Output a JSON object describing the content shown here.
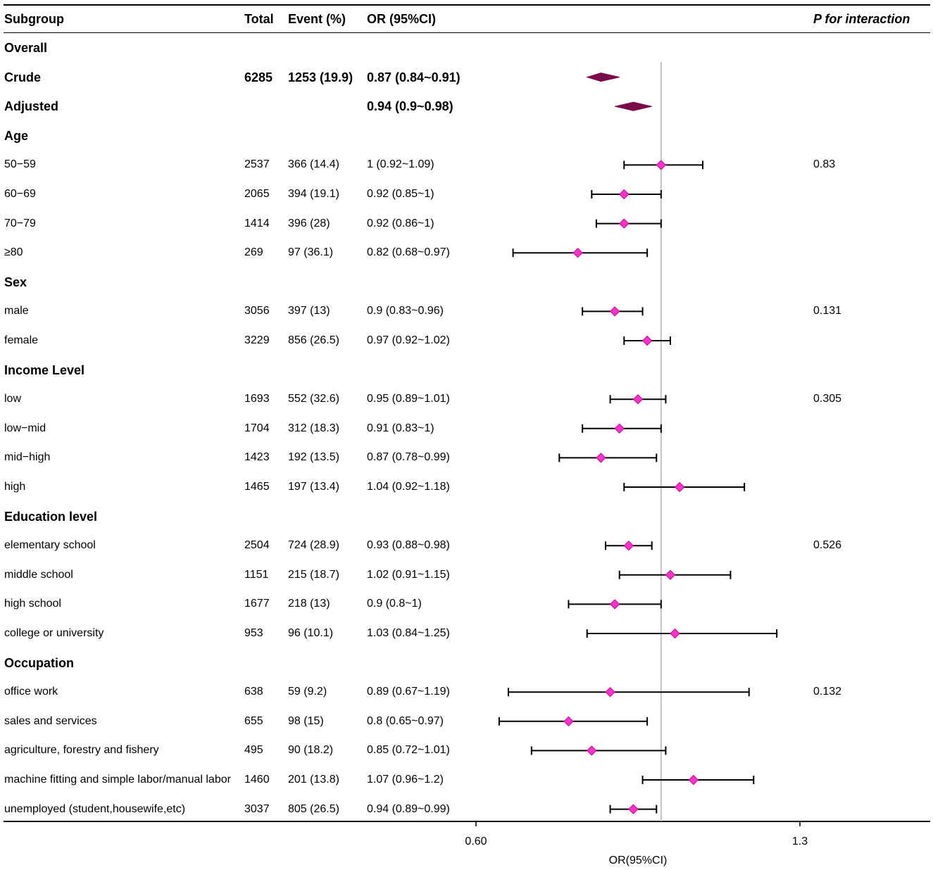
{
  "chart_data": {
    "type": "forest",
    "columns": {
      "subgroup": "Subgroup",
      "total": "Total",
      "event": "Event (%)",
      "or": "OR (95%CI)",
      "p": "P for interaction"
    },
    "rows": [
      {
        "kind": "group",
        "label": "Overall"
      },
      {
        "kind": "summary",
        "label": "Crude",
        "total": "6285",
        "event": "1253 (19.9)",
        "or_text": "0.87 (0.84~0.91)",
        "or": 0.87,
        "lo": 0.84,
        "hi": 0.91
      },
      {
        "kind": "summary",
        "label": "Adjusted",
        "total": "",
        "event": "",
        "or_text": "0.94 (0.9~0.98)",
        "or": 0.94,
        "lo": 0.9,
        "hi": 0.98
      },
      {
        "kind": "group",
        "label": "Age"
      },
      {
        "kind": "item",
        "label": "50−59",
        "total": "2537",
        "event": "366 (14.4)",
        "or_text": "1 (0.92~1.09)",
        "or": 1.0,
        "lo": 0.92,
        "hi": 1.09,
        "p": "0.83"
      },
      {
        "kind": "item",
        "label": "60−69",
        "total": "2065",
        "event": "394 (19.1)",
        "or_text": "0.92 (0.85~1)",
        "or": 0.92,
        "lo": 0.85,
        "hi": 1.0
      },
      {
        "kind": "item",
        "label": "70−79",
        "total": "1414",
        "event": "396 (28)",
        "or_text": "0.92 (0.86~1)",
        "or": 0.92,
        "lo": 0.86,
        "hi": 1.0
      },
      {
        "kind": "item",
        "label": "≥80",
        "total": "269",
        "event": "97 (36.1)",
        "or_text": "0.82 (0.68~0.97)",
        "or": 0.82,
        "lo": 0.68,
        "hi": 0.97
      },
      {
        "kind": "group",
        "label": "Sex"
      },
      {
        "kind": "item",
        "label": "male",
        "total": "3056",
        "event": "397 (13)",
        "or_text": "0.9 (0.83~0.96)",
        "or": 0.9,
        "lo": 0.83,
        "hi": 0.96,
        "p": "0.131"
      },
      {
        "kind": "item",
        "label": "female",
        "total": "3229",
        "event": "856 (26.5)",
        "or_text": "0.97 (0.92~1.02)",
        "or": 0.97,
        "lo": 0.92,
        "hi": 1.02
      },
      {
        "kind": "group",
        "label": "Income Level"
      },
      {
        "kind": "item",
        "label": "low",
        "total": "1693",
        "event": "552 (32.6)",
        "or_text": "0.95 (0.89~1.01)",
        "or": 0.95,
        "lo": 0.89,
        "hi": 1.01,
        "p": "0.305"
      },
      {
        "kind": "item",
        "label": "low−mid",
        "total": "1704",
        "event": "312 (18.3)",
        "or_text": "0.91 (0.83~1)",
        "or": 0.91,
        "lo": 0.83,
        "hi": 1.0
      },
      {
        "kind": "item",
        "label": "mid−high",
        "total": "1423",
        "event": "192 (13.5)",
        "or_text": "0.87 (0.78~0.99)",
        "or": 0.87,
        "lo": 0.78,
        "hi": 0.99
      },
      {
        "kind": "item",
        "label": "high",
        "total": "1465",
        "event": "197 (13.4)",
        "or_text": "1.04 (0.92~1.18)",
        "or": 1.04,
        "lo": 0.92,
        "hi": 1.18
      },
      {
        "kind": "group",
        "label": "Education level"
      },
      {
        "kind": "item",
        "label": "elementary school",
        "total": "2504",
        "event": "724 (28.9)",
        "or_text": "0.93 (0.88~0.98)",
        "or": 0.93,
        "lo": 0.88,
        "hi": 0.98,
        "p": "0.526"
      },
      {
        "kind": "item",
        "label": "middle school",
        "total": "1151",
        "event": "215 (18.7)",
        "or_text": "1.02 (0.91~1.15)",
        "or": 1.02,
        "lo": 0.91,
        "hi": 1.15
      },
      {
        "kind": "item",
        "label": "high school",
        "total": "1677",
        "event": "218 (13)",
        "or_text": "0.9 (0.8~1)",
        "or": 0.9,
        "lo": 0.8,
        "hi": 1.0
      },
      {
        "kind": "item",
        "label": "college or university",
        "total": "953",
        "event": "96 (10.1)",
        "or_text": "1.03 (0.84~1.25)",
        "or": 1.03,
        "lo": 0.84,
        "hi": 1.25
      },
      {
        "kind": "group",
        "label": "Occupation"
      },
      {
        "kind": "item",
        "label": "office work",
        "total": "638",
        "event": "59 (9.2)",
        "or_text": "0.89 (0.67~1.19)",
        "or": 0.89,
        "lo": 0.67,
        "hi": 1.19,
        "p": "0.132"
      },
      {
        "kind": "item",
        "label": "sales and services",
        "total": "655",
        "event": "98 (15)",
        "or_text": "0.8 (0.65~0.97)",
        "or": 0.8,
        "lo": 0.65,
        "hi": 0.97
      },
      {
        "kind": "item",
        "label": "agriculture, forestry and fishery",
        "total": "495",
        "event": "90 (18.2)",
        "or_text": "0.85 (0.72~1.01)",
        "or": 0.85,
        "lo": 0.72,
        "hi": 1.01
      },
      {
        "kind": "item",
        "label": "machine fitting and simple labor/manual labor",
        "total": "1460",
        "event": "201 (13.8)",
        "or_text": "1.07 (0.96~1.2)",
        "or": 1.07,
        "lo": 0.96,
        "hi": 1.2
      },
      {
        "kind": "item",
        "label": "unemployed (student,housewife,etc)",
        "total": "3037",
        "event": "805 (26.5)",
        "or_text": "0.94 (0.89~0.99)",
        "or": 0.94,
        "lo": 0.89,
        "hi": 0.99
      }
    ],
    "x_axis": {
      "title": "OR(95%CI)",
      "ticks": [
        0.6,
        1.3
      ],
      "tick_labels": [
        "0.60",
        "1.3"
      ],
      "range": [
        0.6,
        1.3
      ],
      "reference_line": 1.0
    },
    "colors": {
      "point": "#ff33cc",
      "point_stroke": "#cc0099",
      "summary": "#7a0a4a",
      "ci": "#000000",
      "reference": "#b3b3b3"
    }
  }
}
